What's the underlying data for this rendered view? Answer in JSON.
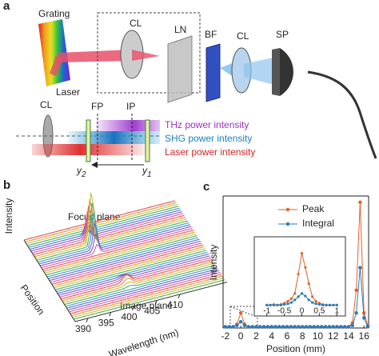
{
  "panel_a": {
    "letter": "a",
    "labels": {
      "grating": "Grating",
      "laser": "Laser",
      "cl1": "CL",
      "ln": "LN",
      "bf": "BF",
      "cl2": "CL",
      "sp": "SP",
      "cl3": "CL",
      "fp": "FP",
      "ip": "IP"
    },
    "legend": [
      "THz power intensity",
      "SHG power intensity",
      "Laser power intensity"
    ],
    "y2": {
      "text": "y",
      "sub": "2"
    },
    "y1": {
      "text": "y",
      "sub": "1"
    }
  },
  "panel_b": {
    "letter": "b",
    "z_label": "Intensity",
    "y_label": "Position",
    "x_label": "Wavelength (nm)",
    "xticks": [
      390,
      395,
      400,
      405,
      410
    ],
    "annotations": [
      "Focus plane",
      "Image plane"
    ]
  },
  "chart_data": [
    {
      "type": "line",
      "panel_label": "c",
      "x_label": "Position (mm)",
      "y_label": "Intensity",
      "x": [
        -2,
        -1.5,
        -1,
        -0.5,
        0,
        0.5,
        1,
        1.5,
        2,
        2.5,
        3,
        3.5,
        4,
        4.5,
        5,
        5.5,
        6,
        6.5,
        7,
        7.5,
        8,
        8.5,
        9,
        9.5,
        10,
        10.5,
        11,
        11.5,
        12,
        12.5,
        13,
        13.5,
        14,
        14.5,
        15,
        15.5,
        16,
        16.5
      ],
      "series": [
        {
          "name": "Peak",
          "color": "#e0622a",
          "values": [
            0.01,
            0.01,
            0.01,
            0.03,
            0.12,
            0.03,
            0.01,
            0.01,
            0.01,
            0.01,
            0.01,
            0.01,
            0.01,
            0.01,
            0.01,
            0.01,
            0.01,
            0.01,
            0.01,
            0.01,
            0.01,
            0.01,
            0.01,
            0.01,
            0.01,
            0.01,
            0.01,
            0.01,
            0.01,
            0.01,
            0.01,
            0.01,
            0.01,
            0.04,
            0.3,
            1.0,
            0.12,
            0.02
          ]
        },
        {
          "name": "Integral",
          "color": "#2a7ab8",
          "values": [
            0.01,
            0.01,
            0.01,
            0.02,
            0.05,
            0.02,
            0.01,
            0.01,
            0.01,
            0.01,
            0.01,
            0.01,
            0.01,
            0.01,
            0.01,
            0.01,
            0.01,
            0.01,
            0.01,
            0.01,
            0.01,
            0.01,
            0.01,
            0.01,
            0.01,
            0.01,
            0.01,
            0.01,
            0.01,
            0.01,
            0.01,
            0.01,
            0.01,
            0.02,
            0.12,
            0.48,
            0.08,
            0.01
          ]
        }
      ],
      "xlim": [
        -2.3,
        16.6
      ],
      "xticks": [
        -2,
        0,
        2,
        4,
        6,
        8,
        10,
        12,
        14,
        16
      ],
      "ylim": [
        0,
        1.05
      ],
      "legend": "upper-center"
    },
    {
      "type": "line",
      "x": [
        -1,
        -0.9,
        -0.8,
        -0.7,
        -0.6,
        -0.5,
        -0.4,
        -0.3,
        -0.2,
        -0.1,
        0,
        0.1,
        0.2,
        0.3,
        0.4,
        0.5,
        0.6,
        0.7,
        0.8,
        0.9,
        1
      ],
      "series": [
        {
          "color": "#e0622a",
          "values": [
            0.02,
            0.02,
            0.03,
            0.02,
            0.03,
            0.05,
            0.08,
            0.12,
            0.2,
            0.5,
            0.82,
            0.6,
            0.35,
            0.15,
            0.08,
            0.05,
            0.03,
            0.02,
            0.02,
            0.02,
            0.02
          ]
        },
        {
          "color": "#2a7ab8",
          "values": [
            0.02,
            0.02,
            0.02,
            0.02,
            0.02,
            0.03,
            0.04,
            0.06,
            0.1,
            0.15,
            0.2,
            0.16,
            0.1,
            0.06,
            0.04,
            0.03,
            0.02,
            0.02,
            0.02,
            0.02,
            0.02
          ]
        }
      ],
      "xlim": [
        -1.2,
        1.2
      ],
      "xticks": [
        -1,
        -0.5,
        0,
        0.5,
        1
      ],
      "ylim": [
        0,
        1
      ]
    }
  ]
}
